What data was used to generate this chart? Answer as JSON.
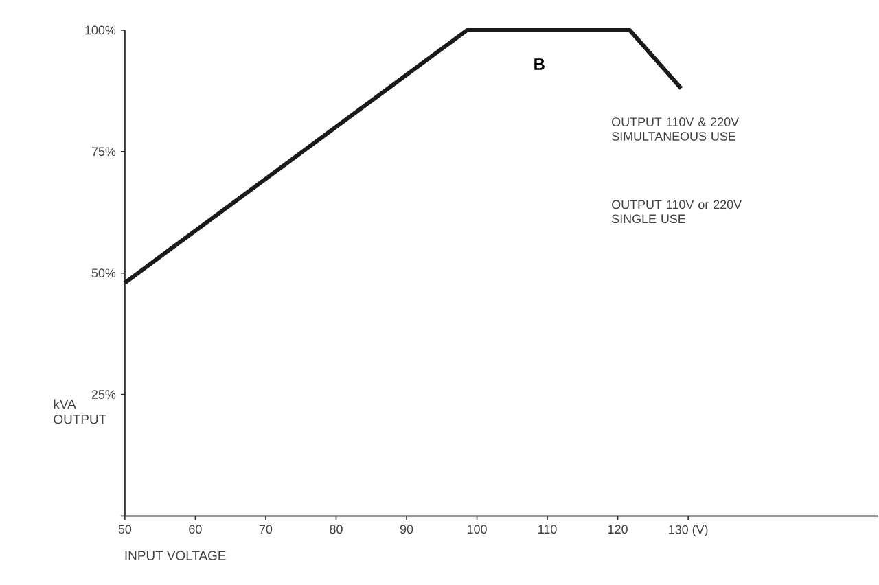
{
  "chart_data": {
    "type": "line",
    "xlabel": "INPUT VOLTAGE",
    "ylabel": "kVA OUTPUT",
    "x": [
      50,
      98.6,
      121.7,
      129
    ],
    "series": [
      {
        "color": "#1a1a1a",
        "values": [
          48,
          100,
          100,
          88
        ]
      }
    ],
    "xlim": [
      50,
      157
    ],
    "ylim": [
      0,
      100
    ],
    "xticks": [
      50,
      60,
      70,
      80,
      90,
      100,
      110,
      120,
      {
        "value": 130,
        "label": "130 (V)"
      }
    ],
    "yticks": [
      {
        "value": 0,
        "label": null
      },
      {
        "value": 25,
        "label": "25%"
      },
      {
        "value": 50,
        "label": "50%"
      },
      {
        "value": 75,
        "label": "75%"
      },
      {
        "value": 100,
        "label": "100%"
      }
    ],
    "annotations": [
      "B",
      "OUTPUT 110V & 220V SIMULTANEOUS USE",
      "OUTPUT 110V or 220V SINGLE USE"
    ],
    "marker": "none",
    "line_style": "solid"
  }
}
